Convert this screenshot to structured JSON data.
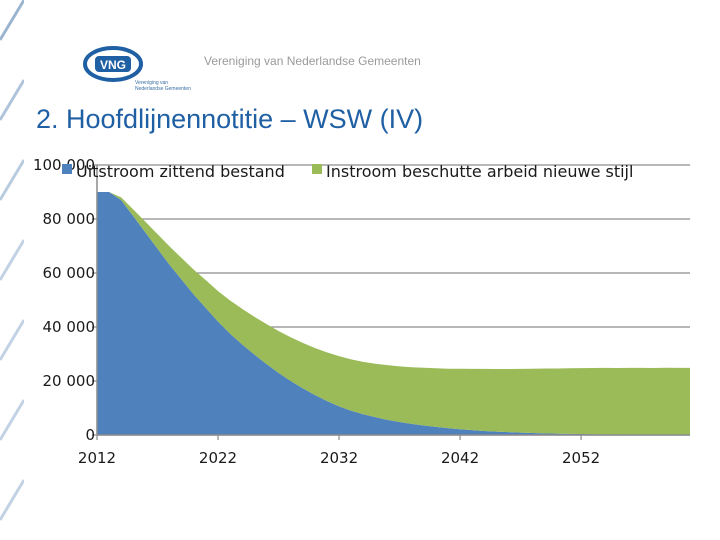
{
  "header": {
    "organization": "Vereniging van Nederlandse Gemeenten",
    "logo_text": "VNG",
    "logo_subtitle_lines": [
      "Vereniging van",
      "Nederlandse Gemeenten"
    ]
  },
  "slide": {
    "title": "2. Hoofdlijnennotitie – WSW (IV)"
  },
  "colors": {
    "series_blue": "#4f81bd",
    "series_green": "#9bbb59",
    "title_blue": "#1f5fa3",
    "decoration": "#3a6ea5"
  },
  "chart_data": {
    "type": "area",
    "stacked": true,
    "x": [
      2012,
      2013,
      2014,
      2015,
      2016,
      2017,
      2018,
      2019,
      2020,
      2021,
      2022,
      2023,
      2024,
      2025,
      2026,
      2027,
      2028,
      2029,
      2030,
      2031,
      2032,
      2033,
      2034,
      2035,
      2036,
      2037,
      2038,
      2039,
      2040,
      2041,
      2042,
      2043,
      2044,
      2045,
      2046,
      2047,
      2048,
      2049,
      2050,
      2051,
      2052,
      2053,
      2054,
      2055,
      2056,
      2057,
      2058,
      2059,
      2060,
      2061
    ],
    "series": [
      {
        "name": "Uitstroom zittend bestand",
        "color": "#4f81bd",
        "values": [
          90000,
          90000,
          87000,
          81000,
          75000,
          69000,
          63000,
          57500,
          52000,
          47000,
          42000,
          37500,
          33500,
          29800,
          26300,
          23000,
          20000,
          17300,
          14800,
          12600,
          10600,
          9000,
          7700,
          6600,
          5600,
          4800,
          4100,
          3500,
          3000,
          2550,
          2150,
          1800,
          1500,
          1250,
          1050,
          880,
          740,
          620,
          520,
          430,
          360,
          300,
          250,
          210,
          170,
          140,
          120,
          100,
          80,
          70
        ]
      },
      {
        "name": "Instroom beschutte arbeid nieuwe stijl",
        "color": "#9bbb59",
        "values": [
          0,
          0,
          1000,
          2500,
          4000,
          5400,
          6800,
          8000,
          9200,
          10300,
          11300,
          12300,
          13200,
          14000,
          14800,
          15500,
          16200,
          16800,
          17400,
          18000,
          18600,
          19000,
          19400,
          19800,
          20300,
          20600,
          21000,
          21400,
          21700,
          22000,
          22400,
          22700,
          23000,
          23200,
          23400,
          23600,
          23800,
          24000,
          24100,
          24300,
          24400,
          24500,
          24600,
          24600,
          24700,
          24700,
          24700,
          24800,
          24800,
          24800
        ]
      }
    ],
    "x_ticks": [
      2012,
      2022,
      2032,
      2042,
      2052
    ],
    "x_tick_labels": [
      "2012",
      "2022",
      "2032",
      "2042",
      "2052"
    ],
    "y_ticks": [
      0,
      20000,
      40000,
      60000,
      80000,
      100000
    ],
    "y_tick_labels": [
      "0",
      "20 000",
      "40 000",
      "60 000",
      "80 000",
      "100 000"
    ],
    "xlim": [
      2012,
      2061
    ],
    "ylim": [
      0,
      100000
    ],
    "grid": true,
    "legend_position": "top",
    "title": "",
    "xlabel": "",
    "ylabel": ""
  }
}
